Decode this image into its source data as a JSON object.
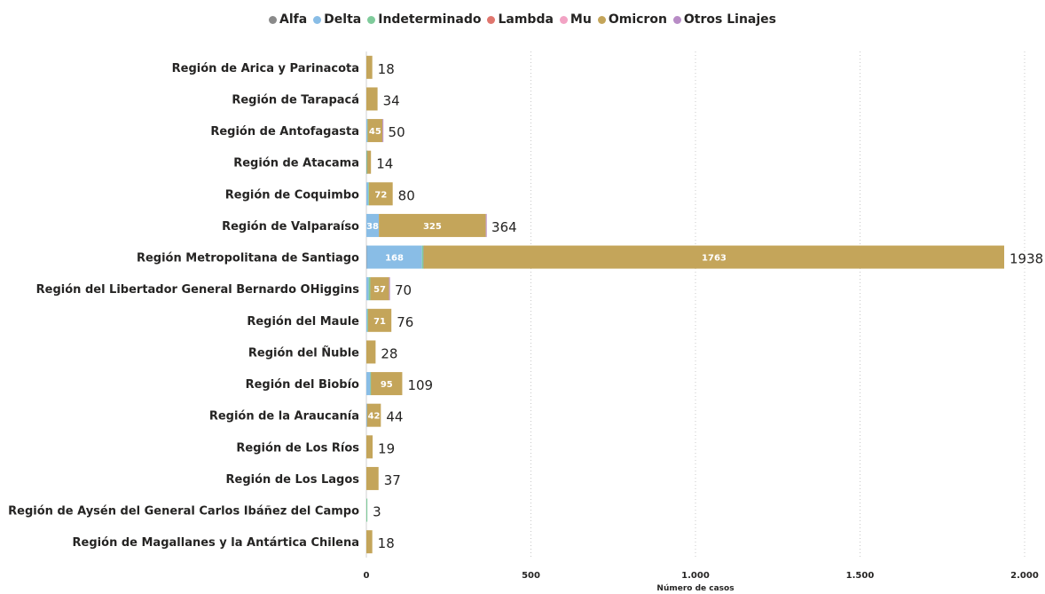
{
  "chart_data": {
    "type": "bar",
    "orientation": "horizontal",
    "stacked": true,
    "title": "",
    "xlabel": "Número de casos",
    "ylabel": "",
    "xlim": [
      0,
      2000
    ],
    "x_ticks": [
      0,
      500,
      1000,
      1500,
      2000
    ],
    "x_tick_labels": [
      "0",
      "500",
      "1.000",
      "1.500",
      "2.000"
    ],
    "grid": "vertical-dotted",
    "legend_position": "top-center",
    "categories": [
      "Región de Arica y Parinacota",
      "Región de Tarapacá",
      "Región de Antofagasta",
      "Región de Atacama",
      "Región de Coquimbo",
      "Región de Valparaíso",
      "Región Metropolitana de Santiago",
      "Región del Libertador General Bernardo OHiggins",
      "Región del Maule",
      "Región del Ñuble",
      "Región del Biobío",
      "Región de la Araucanía",
      "Región de Los Ríos",
      "Región de Los Lagos",
      "Región de Aysén del General Carlos Ibáñez del Campo",
      "Región de Magallanes y la Antártica Chilena"
    ],
    "totals": [
      18,
      34,
      50,
      14,
      80,
      364,
      1938,
      70,
      76,
      28,
      109,
      44,
      19,
      37,
      3,
      18
    ],
    "series": [
      {
        "name": "Alfa",
        "color": "#8a8a8a",
        "values": [
          0,
          0,
          0,
          1,
          0,
          0,
          1,
          0,
          0,
          0,
          0,
          0,
          0,
          0,
          0,
          0
        ]
      },
      {
        "name": "Delta",
        "color": "#89bde6",
        "values": [
          0,
          0,
          3,
          0,
          6,
          38,
          168,
          7,
          3,
          0,
          12,
          2,
          0,
          0,
          0,
          0
        ]
      },
      {
        "name": "Indeterminado",
        "color": "#7fcb9b",
        "values": [
          0,
          0,
          1,
          2,
          2,
          0,
          5,
          5,
          2,
          0,
          2,
          0,
          0,
          0,
          3,
          0
        ]
      },
      {
        "name": "Lambda",
        "color": "#e0766e",
        "values": [
          0,
          0,
          0,
          0,
          0,
          0,
          1,
          0,
          0,
          0,
          0,
          0,
          0,
          0,
          0,
          0
        ]
      },
      {
        "name": "Mu",
        "color": "#f2a3c4",
        "values": [
          0,
          0,
          0,
          0,
          0,
          0,
          0,
          0,
          0,
          0,
          0,
          0,
          0,
          0,
          0,
          0
        ]
      },
      {
        "name": "Omicron",
        "color": "#c4a55a",
        "values": [
          18,
          34,
          45,
          11,
          72,
          325,
          1763,
          57,
          71,
          28,
          95,
          42,
          19,
          37,
          0,
          18
        ]
      },
      {
        "name": "Otros Linajes",
        "color": "#b88cc6",
        "values": [
          0,
          0,
          1,
          0,
          0,
          1,
          0,
          1,
          0,
          0,
          0,
          0,
          0,
          0,
          0,
          0
        ]
      }
    ],
    "segment_labels": [
      {
        "row": 2,
        "series": "Omicron",
        "text": "45"
      },
      {
        "row": 4,
        "series": "Omicron",
        "text": "72"
      },
      {
        "row": 5,
        "series": "Delta",
        "text": "38"
      },
      {
        "row": 5,
        "series": "Omicron",
        "text": "325"
      },
      {
        "row": 6,
        "series": "Delta",
        "text": "168"
      },
      {
        "row": 6,
        "series": "Omicron",
        "text": "1763"
      },
      {
        "row": 7,
        "series": "Omicron",
        "text": "57"
      },
      {
        "row": 8,
        "series": "Omicron",
        "text": "71"
      },
      {
        "row": 10,
        "series": "Omicron",
        "text": "95"
      },
      {
        "row": 11,
        "series": "Omicron",
        "text": "42"
      }
    ]
  }
}
